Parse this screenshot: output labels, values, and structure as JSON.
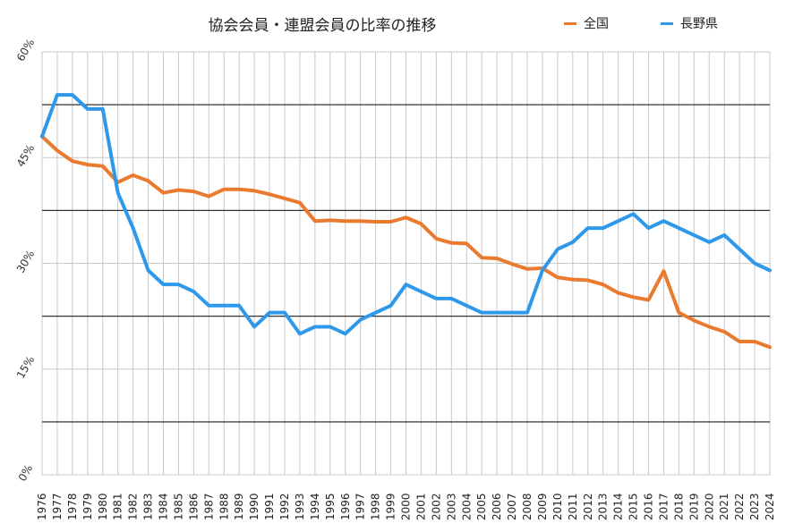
{
  "chart_data": {
    "type": "line",
    "title": "協会会員・連盟会員の比率の推移",
    "xlabel": "",
    "ylabel": "",
    "ylim": [
      0,
      60
    ],
    "grid": true,
    "legend_position": "top-right",
    "y_ticks": [
      "0%",
      "15%",
      "30%",
      "45%",
      "60%"
    ],
    "x": [
      1976,
      1977,
      1978,
      1979,
      1980,
      1981,
      1982,
      1983,
      1984,
      1985,
      1986,
      1987,
      1988,
      1989,
      1990,
      1991,
      1992,
      1993,
      1994,
      1995,
      1996,
      1997,
      1998,
      1999,
      2000,
      2001,
      2002,
      2003,
      2004,
      2005,
      2006,
      2007,
      2008,
      2009,
      2010,
      2011,
      2012,
      2013,
      2014,
      2015,
      2016,
      2017,
      2018,
      2019,
      2020,
      2021,
      2022,
      2023,
      2024
    ],
    "series": [
      {
        "name": "全国",
        "color": "#ea7a2e",
        "values": [
          48.0,
          46.0,
          44.5,
          44.0,
          43.8,
          41.5,
          42.5,
          41.7,
          40.0,
          40.4,
          40.2,
          39.5,
          40.5,
          40.5,
          40.3,
          39.8,
          39.2,
          38.6,
          36.0,
          36.1,
          36.0,
          36.0,
          35.9,
          35.9,
          36.5,
          35.6,
          33.5,
          32.9,
          32.8,
          30.8,
          30.7,
          29.9,
          29.2,
          29.3,
          28.0,
          27.7,
          27.6,
          27.0,
          25.8,
          25.2,
          24.8,
          28.9,
          23.0,
          21.9,
          21.0,
          20.3,
          18.9,
          18.9,
          18.1
        ]
      },
      {
        "name": "長野県",
        "color": "#2e98ea",
        "values": [
          48.0,
          53.9,
          53.9,
          51.9,
          51.9,
          40.0,
          35.0,
          29.0,
          27.0,
          27.0,
          26.0,
          24.0,
          24.0,
          24.0,
          21.0,
          23.0,
          23.0,
          20.0,
          21.0,
          21.0,
          20.0,
          22.0,
          23.0,
          24.0,
          27.0,
          26.0,
          25.0,
          25.0,
          24.0,
          23.0,
          23.0,
          23.0,
          23.0,
          29.0,
          32.0,
          33.0,
          35.0,
          35.0,
          36.0,
          37.0,
          35.0,
          36.0,
          35.0,
          34.0,
          33.0,
          34.0,
          32.0,
          30.0,
          29.0
        ]
      }
    ]
  }
}
